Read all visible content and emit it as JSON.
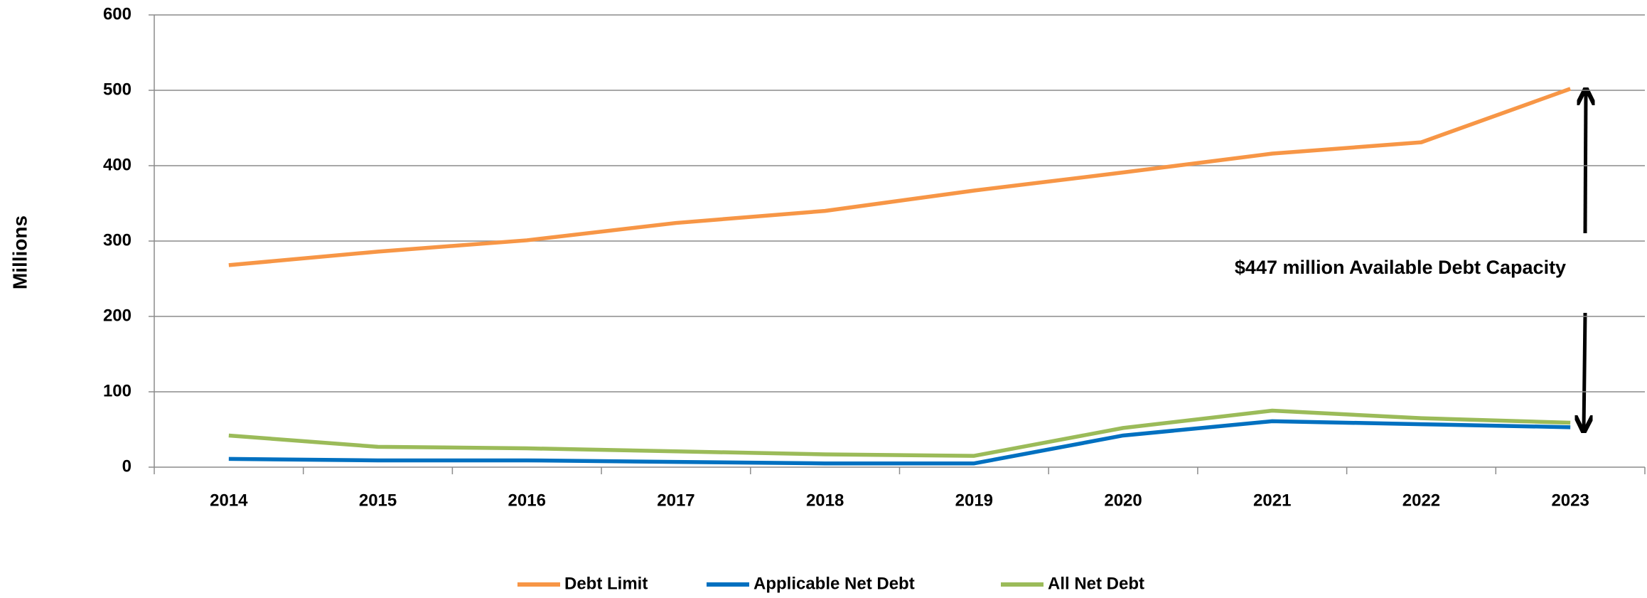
{
  "chart_data": {
    "type": "line",
    "y_label": "Millions",
    "annotation": "$447 million Available Debt Capacity",
    "categories": [
      "2014",
      "2015",
      "2016",
      "2017",
      "2018",
      "2019",
      "2020",
      "2021",
      "2022",
      "2023"
    ],
    "series": [
      {
        "name": "Debt Limit",
        "color": "#f79646",
        "values": [
          268,
          286,
          301,
          324,
          340,
          367,
          391,
          416,
          431,
          502
        ]
      },
      {
        "name": "Applicable Net Debt",
        "color": "#0070c0",
        "values": [
          11,
          9,
          9,
          7,
          5,
          5,
          42,
          61,
          57,
          53
        ]
      },
      {
        "name": "All Net Debt",
        "color": "#9bbb59",
        "values": [
          42,
          27,
          25,
          21,
          17,
          15,
          52,
          75,
          65,
          59
        ]
      }
    ],
    "ylim": [
      0,
      600
    ],
    "yticks": [
      0,
      100,
      200,
      300,
      400,
      500,
      600
    ],
    "grid": true,
    "legend": "bottom"
  }
}
